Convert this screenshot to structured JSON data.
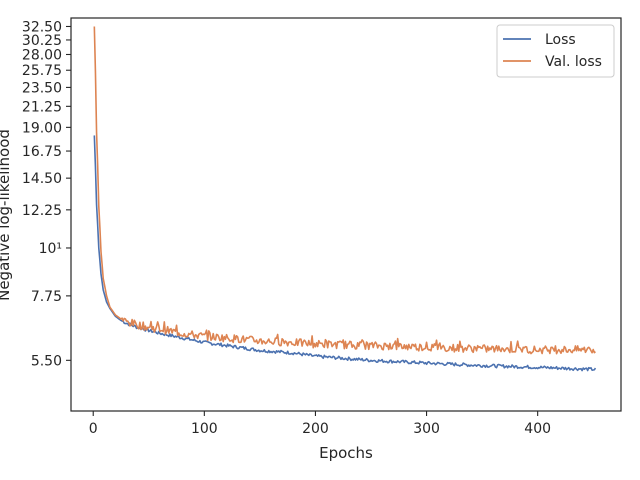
{
  "chart_data": {
    "type": "line",
    "title": "",
    "xlabel": "Epochs",
    "ylabel": "Negative log-likelihood",
    "yscale": "log",
    "xlim": [
      -20,
      475
    ],
    "ylim": [
      4.2,
      34.0
    ],
    "grid": false,
    "legend_position": "top-right",
    "xticks": [
      0,
      100,
      200,
      300,
      400
    ],
    "xtick_labels": [
      "0",
      "100",
      "200",
      "300",
      "400"
    ],
    "yticks": [
      5.5,
      7.75,
      10,
      12.25,
      14.5,
      16.75,
      19.0,
      21.25,
      23.5,
      25.75,
      28.0,
      30.25,
      32.5
    ],
    "ytick_labels": [
      "5.50",
      "7.75",
      "10¹",
      "12.25",
      "14.50",
      "16.75",
      "19.00",
      "21.25",
      "23.50",
      "25.75",
      "28.00",
      "30.25",
      "32.50"
    ],
    "series": [
      {
        "name": "Loss",
        "color": "#4c72b0",
        "x": [
          1,
          3,
          5,
          7,
          9,
          12,
          15,
          20,
          25,
          30,
          40,
          50,
          60,
          80,
          100,
          120,
          150,
          180,
          200,
          250,
          300,
          350,
          400,
          452
        ],
        "y": [
          18.2,
          12.6,
          10.0,
          8.7,
          8.0,
          7.5,
          7.25,
          6.95,
          6.8,
          6.7,
          6.55,
          6.45,
          6.35,
          6.2,
          6.05,
          5.95,
          5.8,
          5.72,
          5.62,
          5.5,
          5.42,
          5.35,
          5.3,
          5.24
        ],
        "noise": 0.025
      },
      {
        "name": "Val. loss",
        "color": "#dd8452",
        "x": [
          1,
          3,
          5,
          7,
          9,
          12,
          15,
          20,
          25,
          30,
          40,
          50,
          60,
          80,
          100,
          120,
          150,
          180,
          200,
          250,
          300,
          350,
          400,
          452
        ],
        "y": [
          32.5,
          18.5,
          12.5,
          9.8,
          8.5,
          7.75,
          7.3,
          7.0,
          6.85,
          6.75,
          6.65,
          6.55,
          6.5,
          6.35,
          6.25,
          6.2,
          6.1,
          6.05,
          6.0,
          5.95,
          5.9,
          5.85,
          5.82,
          5.82
        ],
        "noise": 0.06
      }
    ]
  }
}
